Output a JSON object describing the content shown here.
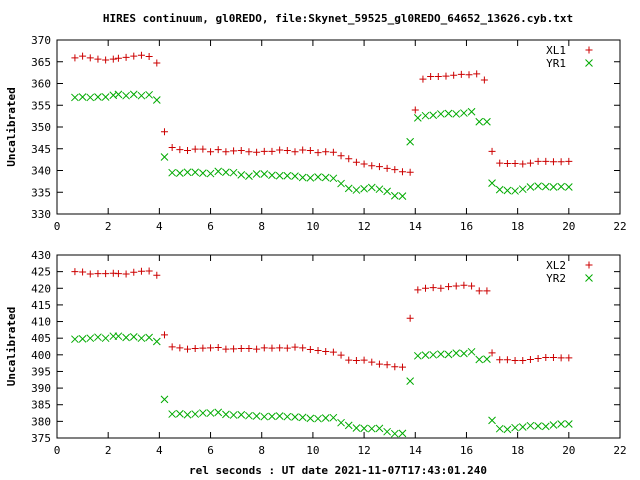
{
  "title": "HIRES continuum, gl0REDO, file:Skynet_59525_gl0REDO_64652_13626.cyb.txt",
  "xlabel": "rel seconds : UT date 2021-11-07T17:43:01.240",
  "colors": {
    "red": "#cc0000",
    "green": "#00aa00"
  },
  "chart_data": [
    {
      "type": "scatter",
      "ylabel": "Uncalibrated",
      "xlim": [
        0,
        22
      ],
      "ylim": [
        330,
        370
      ],
      "xticks": [
        0,
        2,
        4,
        6,
        8,
        10,
        12,
        14,
        16,
        18,
        20,
        22
      ],
      "yticks": [
        330,
        335,
        340,
        345,
        350,
        355,
        360,
        365,
        370
      ],
      "legend_position": "top-right",
      "series": [
        {
          "name": "XL1",
          "marker": "plus",
          "color": "#cc0000",
          "points": [
            [
              0.7,
              365.9
            ],
            [
              1.0,
              366.3
            ],
            [
              1.3,
              365.9
            ],
            [
              1.6,
              365.6
            ],
            [
              1.9,
              365.4
            ],
            [
              2.2,
              365.6
            ],
            [
              2.4,
              365.8
            ],
            [
              2.7,
              366.0
            ],
            [
              3.0,
              366.3
            ],
            [
              3.3,
              366.5
            ],
            [
              3.6,
              366.2
            ],
            [
              3.9,
              364.7
            ],
            [
              4.2,
              348.9
            ],
            [
              4.5,
              345.3
            ],
            [
              4.8,
              344.8
            ],
            [
              5.1,
              344.6
            ],
            [
              5.4,
              344.9
            ],
            [
              5.7,
              344.9
            ],
            [
              6.0,
              344.3
            ],
            [
              6.3,
              344.8
            ],
            [
              6.6,
              344.3
            ],
            [
              6.9,
              344.5
            ],
            [
              7.2,
              344.6
            ],
            [
              7.5,
              344.3
            ],
            [
              7.8,
              344.2
            ],
            [
              8.1,
              344.4
            ],
            [
              8.4,
              344.4
            ],
            [
              8.7,
              344.7
            ],
            [
              9.0,
              344.6
            ],
            [
              9.3,
              344.3
            ],
            [
              9.6,
              344.7
            ],
            [
              9.9,
              344.6
            ],
            [
              10.2,
              344.1
            ],
            [
              10.5,
              344.3
            ],
            [
              10.8,
              344.2
            ],
            [
              11.1,
              343.4
            ],
            [
              11.4,
              342.7
            ],
            [
              11.7,
              341.9
            ],
            [
              12.0,
              341.5
            ],
            [
              12.3,
              341.1
            ],
            [
              12.6,
              340.9
            ],
            [
              12.9,
              340.5
            ],
            [
              13.2,
              340.2
            ],
            [
              13.5,
              339.7
            ],
            [
              13.8,
              339.6
            ],
            [
              14.0,
              353.9
            ],
            [
              14.3,
              361.0
            ],
            [
              14.6,
              361.6
            ],
            [
              14.9,
              361.6
            ],
            [
              15.2,
              361.7
            ],
            [
              15.5,
              361.9
            ],
            [
              15.8,
              362.1
            ],
            [
              16.1,
              362.0
            ],
            [
              16.4,
              362.2
            ],
            [
              16.7,
              360.8
            ],
            [
              17.0,
              344.4
            ],
            [
              17.3,
              341.7
            ],
            [
              17.6,
              341.6
            ],
            [
              17.9,
              341.6
            ],
            [
              18.2,
              341.5
            ],
            [
              18.5,
              341.7
            ],
            [
              18.8,
              342.1
            ],
            [
              19.1,
              342.1
            ],
            [
              19.4,
              342.0
            ],
            [
              19.7,
              342.0
            ],
            [
              20.0,
              342.1
            ]
          ]
        },
        {
          "name": "YR1",
          "marker": "cross",
          "color": "#00aa00",
          "points": [
            [
              0.7,
              356.8
            ],
            [
              1.0,
              356.9
            ],
            [
              1.3,
              356.8
            ],
            [
              1.6,
              356.9
            ],
            [
              1.9,
              356.9
            ],
            [
              2.2,
              357.3
            ],
            [
              2.4,
              357.5
            ],
            [
              2.7,
              357.2
            ],
            [
              3.0,
              357.5
            ],
            [
              3.3,
              357.2
            ],
            [
              3.6,
              357.4
            ],
            [
              3.9,
              356.2
            ],
            [
              4.2,
              343.1
            ],
            [
              4.5,
              339.5
            ],
            [
              4.8,
              339.4
            ],
            [
              5.1,
              339.6
            ],
            [
              5.4,
              339.6
            ],
            [
              5.7,
              339.4
            ],
            [
              6.0,
              339.3
            ],
            [
              6.3,
              339.8
            ],
            [
              6.6,
              339.6
            ],
            [
              6.9,
              339.5
            ],
            [
              7.2,
              339.0
            ],
            [
              7.5,
              338.7
            ],
            [
              7.8,
              339.2
            ],
            [
              8.1,
              339.2
            ],
            [
              8.4,
              338.9
            ],
            [
              8.7,
              338.8
            ],
            [
              9.0,
              338.8
            ],
            [
              9.3,
              338.7
            ],
            [
              9.6,
              338.4
            ],
            [
              9.9,
              338.3
            ],
            [
              10.2,
              338.5
            ],
            [
              10.5,
              338.4
            ],
            [
              10.8,
              338.2
            ],
            [
              11.1,
              337.0
            ],
            [
              11.4,
              335.9
            ],
            [
              11.7,
              335.5
            ],
            [
              12.0,
              335.8
            ],
            [
              12.3,
              336.1
            ],
            [
              12.6,
              335.7
            ],
            [
              12.9,
              335.2
            ],
            [
              13.2,
              334.2
            ],
            [
              13.5,
              334.1
            ],
            [
              13.8,
              346.6
            ],
            [
              14.1,
              352.1
            ],
            [
              14.4,
              352.6
            ],
            [
              14.7,
              352.7
            ],
            [
              15.0,
              353.0
            ],
            [
              15.3,
              353.1
            ],
            [
              15.6,
              353.0
            ],
            [
              15.9,
              353.2
            ],
            [
              16.2,
              353.5
            ],
            [
              16.5,
              351.2
            ],
            [
              16.8,
              351.2
            ],
            [
              17.0,
              337.1
            ],
            [
              17.3,
              335.6
            ],
            [
              17.6,
              335.4
            ],
            [
              17.9,
              335.3
            ],
            [
              18.2,
              335.7
            ],
            [
              18.5,
              336.2
            ],
            [
              18.8,
              336.4
            ],
            [
              19.1,
              336.3
            ],
            [
              19.4,
              336.2
            ],
            [
              19.7,
              336.3
            ],
            [
              20.0,
              336.2
            ]
          ]
        }
      ]
    },
    {
      "type": "scatter",
      "ylabel": "Uncalibrated",
      "xlim": [
        0,
        22
      ],
      "ylim": [
        375,
        430
      ],
      "xticks": [
        0,
        2,
        4,
        6,
        8,
        10,
        12,
        14,
        16,
        18,
        20,
        22
      ],
      "yticks": [
        375,
        380,
        385,
        390,
        395,
        400,
        405,
        410,
        415,
        420,
        425,
        430
      ],
      "legend_position": "top-right",
      "series": [
        {
          "name": "XL2",
          "marker": "plus",
          "color": "#cc0000",
          "points": [
            [
              0.7,
              425.0
            ],
            [
              1.0,
              424.9
            ],
            [
              1.3,
              424.3
            ],
            [
              1.6,
              424.4
            ],
            [
              1.9,
              424.4
            ],
            [
              2.2,
              424.5
            ],
            [
              2.4,
              424.4
            ],
            [
              2.7,
              424.3
            ],
            [
              3.0,
              424.8
            ],
            [
              3.3,
              425.1
            ],
            [
              3.6,
              425.2
            ],
            [
              3.9,
              423.9
            ],
            [
              4.2,
              406.0
            ],
            [
              4.5,
              402.4
            ],
            [
              4.8,
              402.1
            ],
            [
              5.1,
              401.7
            ],
            [
              5.4,
              401.9
            ],
            [
              5.7,
              402.0
            ],
            [
              6.0,
              402.1
            ],
            [
              6.3,
              402.2
            ],
            [
              6.6,
              401.7
            ],
            [
              6.9,
              401.8
            ],
            [
              7.2,
              401.9
            ],
            [
              7.5,
              401.9
            ],
            [
              7.8,
              401.7
            ],
            [
              8.1,
              402.1
            ],
            [
              8.4,
              402.0
            ],
            [
              8.7,
              402.1
            ],
            [
              9.0,
              402.0
            ],
            [
              9.3,
              402.3
            ],
            [
              9.6,
              402.1
            ],
            [
              9.9,
              401.6
            ],
            [
              10.2,
              401.3
            ],
            [
              10.5,
              401.0
            ],
            [
              10.8,
              400.8
            ],
            [
              11.1,
              399.9
            ],
            [
              11.4,
              398.4
            ],
            [
              11.7,
              398.3
            ],
            [
              12.0,
              398.4
            ],
            [
              12.3,
              397.8
            ],
            [
              12.6,
              397.2
            ],
            [
              12.9,
              397.0
            ],
            [
              13.2,
              396.4
            ],
            [
              13.5,
              396.3
            ],
            [
              13.8,
              411.0
            ],
            [
              14.1,
              419.5
            ],
            [
              14.4,
              420.0
            ],
            [
              14.7,
              420.2
            ],
            [
              15.0,
              420.0
            ],
            [
              15.3,
              420.5
            ],
            [
              15.6,
              420.7
            ],
            [
              15.9,
              420.9
            ],
            [
              16.2,
              420.7
            ],
            [
              16.5,
              419.2
            ],
            [
              16.8,
              419.2
            ],
            [
              17.0,
              400.6
            ],
            [
              17.3,
              398.5
            ],
            [
              17.6,
              398.5
            ],
            [
              17.9,
              398.3
            ],
            [
              18.2,
              398.3
            ],
            [
              18.5,
              398.6
            ],
            [
              18.8,
              398.9
            ],
            [
              19.1,
              399.2
            ],
            [
              19.4,
              399.2
            ],
            [
              19.7,
              399.1
            ],
            [
              20.0,
              399.1
            ]
          ]
        },
        {
          "name": "YR2",
          "marker": "cross",
          "color": "#00aa00",
          "points": [
            [
              0.7,
              404.7
            ],
            [
              1.0,
              404.8
            ],
            [
              1.3,
              405.0
            ],
            [
              1.6,
              405.3
            ],
            [
              1.9,
              405.0
            ],
            [
              2.2,
              405.6
            ],
            [
              2.4,
              405.6
            ],
            [
              2.7,
              405.2
            ],
            [
              3.0,
              405.4
            ],
            [
              3.3,
              405.0
            ],
            [
              3.6,
              405.2
            ],
            [
              3.9,
              404.0
            ],
            [
              4.2,
              386.6
            ],
            [
              4.5,
              382.2
            ],
            [
              4.8,
              382.3
            ],
            [
              5.1,
              382.0
            ],
            [
              5.4,
              382.2
            ],
            [
              5.7,
              382.5
            ],
            [
              6.0,
              382.5
            ],
            [
              6.3,
              382.7
            ],
            [
              6.6,
              382.1
            ],
            [
              6.9,
              381.9
            ],
            [
              7.2,
              382.0
            ],
            [
              7.5,
              381.7
            ],
            [
              7.8,
              381.6
            ],
            [
              8.1,
              381.4
            ],
            [
              8.4,
              381.5
            ],
            [
              8.7,
              381.6
            ],
            [
              9.0,
              381.4
            ],
            [
              9.3,
              381.3
            ],
            [
              9.6,
              381.2
            ],
            [
              9.9,
              380.9
            ],
            [
              10.2,
              380.8
            ],
            [
              10.5,
              381.0
            ],
            [
              10.8,
              381.1
            ],
            [
              11.1,
              379.6
            ],
            [
              11.4,
              378.8
            ],
            [
              11.7,
              378.0
            ],
            [
              12.0,
              377.9
            ],
            [
              12.3,
              377.8
            ],
            [
              12.6,
              377.9
            ],
            [
              12.9,
              376.9
            ],
            [
              13.2,
              376.3
            ],
            [
              13.5,
              376.4
            ],
            [
              13.8,
              392.1
            ],
            [
              14.1,
              399.7
            ],
            [
              14.4,
              399.9
            ],
            [
              14.7,
              400.0
            ],
            [
              15.0,
              400.2
            ],
            [
              15.3,
              400.1
            ],
            [
              15.6,
              400.5
            ],
            [
              15.9,
              400.4
            ],
            [
              16.2,
              400.9
            ],
            [
              16.5,
              398.6
            ],
            [
              16.8,
              398.7
            ],
            [
              17.0,
              380.3
            ],
            [
              17.3,
              377.8
            ],
            [
              17.6,
              377.6
            ],
            [
              17.9,
              378.1
            ],
            [
              18.2,
              378.3
            ],
            [
              18.5,
              378.7
            ],
            [
              18.8,
              378.6
            ],
            [
              19.1,
              378.5
            ],
            [
              19.4,
              378.9
            ],
            [
              19.7,
              379.2
            ],
            [
              20.0,
              379.2
            ]
          ]
        }
      ]
    }
  ]
}
